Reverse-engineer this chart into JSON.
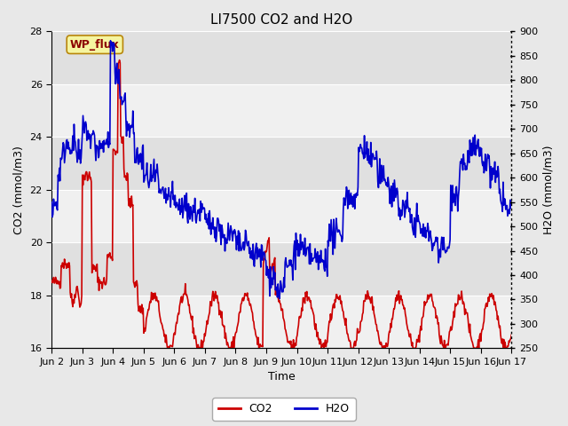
{
  "title": "LI7500 CO2 and H2O",
  "xlabel": "Time",
  "ylabel_left": "CO2 (mmol/m3)",
  "ylabel_right": "H2O (mmol/m3)",
  "co2_ylim": [
    16,
    28
  ],
  "h2o_ylim": [
    250,
    900
  ],
  "co2_yticks": [
    16,
    18,
    20,
    22,
    24,
    26,
    28
  ],
  "h2o_yticks": [
    250,
    300,
    350,
    400,
    450,
    500,
    550,
    600,
    650,
    700,
    750,
    800,
    850,
    900
  ],
  "xtick_labels": [
    "Jun 2",
    "Jun 3",
    "Jun 4",
    "Jun 5",
    "Jun 6",
    "Jun 7",
    "Jun 8",
    "Jun 9",
    "Jun 10",
    "Jun 11",
    "Jun 12",
    "Jun 13",
    "Jun 14",
    "Jun 15",
    "Jun 16",
    "Jun 17"
  ],
  "co2_color": "#cc0000",
  "h2o_color": "#0000cc",
  "annotation_text": "WP_flux",
  "bg_color": "#e8e8e8",
  "plot_bg_color": "#e8e8e8",
  "band_color_light": "#f0f0f0",
  "band_color_dark": "#dcdcdc",
  "grid_color": "#ffffff",
  "title_fontsize": 11,
  "label_fontsize": 9,
  "tick_fontsize": 8,
  "legend_fontsize": 9,
  "line_width": 1.2
}
